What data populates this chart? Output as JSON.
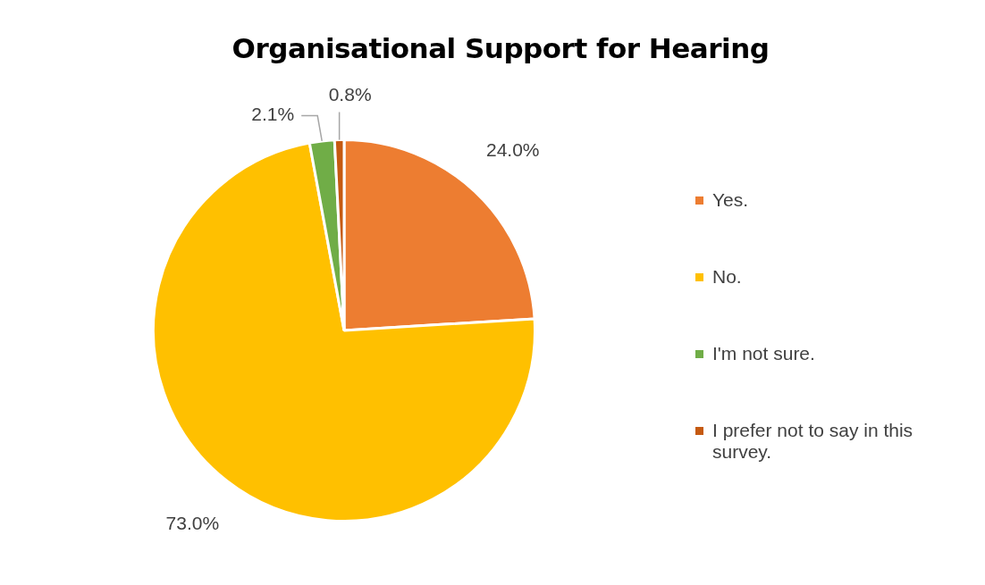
{
  "chart_data": {
    "type": "pie",
    "title": "Organisational Support for Hearing",
    "categories": [
      "Yes.",
      "No.",
      "I'm not sure.",
      "I prefer not to say in this survey."
    ],
    "values": [
      24.0,
      73.0,
      2.1,
      0.8
    ],
    "colors": [
      "#ed7d31",
      "#ffc000",
      "#70ad47",
      "#c55a11"
    ],
    "value_labels": [
      "24.0%",
      "73.0%",
      "2.1%",
      "0.8%"
    ],
    "legend": "right"
  }
}
